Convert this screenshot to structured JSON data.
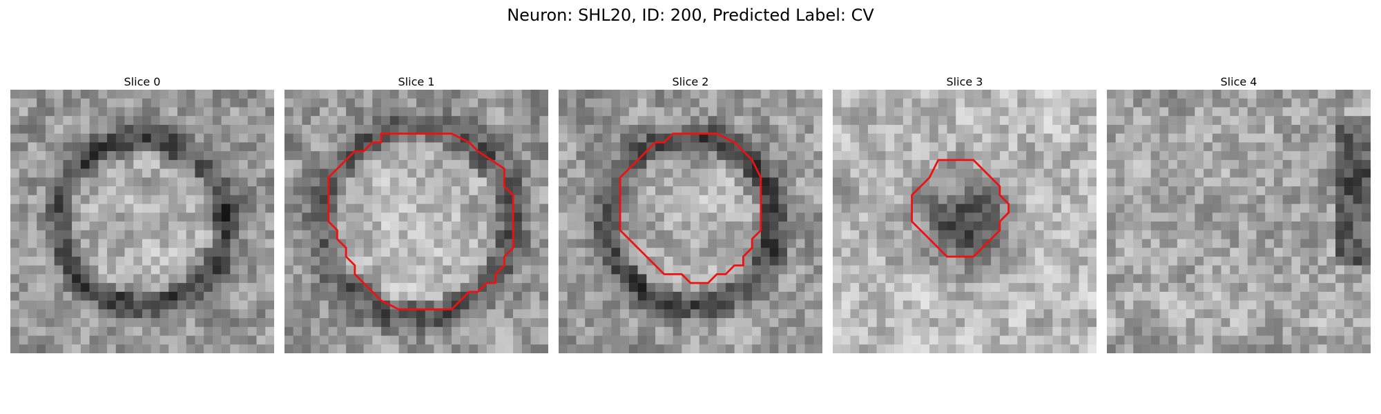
{
  "figure": {
    "title": "Neuron: SHL20, ID: 200, Predicted Label: CV"
  },
  "grid_size": 30,
  "contour_color": "#ee1111",
  "panels": [
    {
      "title": "Slice 0",
      "seed": 11,
      "style": "ring",
      "contour": []
    },
    {
      "title": "Slice 1",
      "seed": 23,
      "style": "ring-wide",
      "contour": [
        [
          11,
          5
        ],
        [
          19,
          5
        ],
        [
          21,
          6
        ],
        [
          22,
          7
        ],
        [
          25,
          9
        ],
        [
          25,
          11
        ],
        [
          26,
          12
        ],
        [
          26,
          18
        ],
        [
          25,
          19
        ],
        [
          25,
          20
        ],
        [
          24,
          21
        ],
        [
          24,
          22
        ],
        [
          23,
          22
        ],
        [
          22,
          23
        ],
        [
          21,
          23
        ],
        [
          20,
          24
        ],
        [
          19,
          25
        ],
        [
          13,
          25
        ],
        [
          11,
          24
        ],
        [
          10,
          23
        ],
        [
          9,
          22
        ],
        [
          8,
          21
        ],
        [
          8,
          20
        ],
        [
          7,
          19
        ],
        [
          7,
          18
        ],
        [
          6,
          17
        ],
        [
          6,
          16
        ],
        [
          5,
          15
        ],
        [
          5,
          10
        ],
        [
          6,
          9
        ],
        [
          7,
          8
        ],
        [
          8,
          7
        ],
        [
          9,
          7
        ],
        [
          10,
          6
        ],
        [
          11,
          6
        ]
      ]
    },
    {
      "title": "Slice 2",
      "seed": 37,
      "style": "ring",
      "contour": [
        [
          13,
          5
        ],
        [
          18,
          5
        ],
        [
          20,
          6
        ],
        [
          21,
          7
        ],
        [
          22,
          8
        ],
        [
          23,
          10
        ],
        [
          23,
          16
        ],
        [
          22,
          17
        ],
        [
          22,
          18
        ],
        [
          21,
          19
        ],
        [
          21,
          20
        ],
        [
          20,
          20
        ],
        [
          19,
          21
        ],
        [
          18,
          21
        ],
        [
          17,
          22
        ],
        [
          15,
          22
        ],
        [
          14,
          21
        ],
        [
          12,
          21
        ],
        [
          11,
          20
        ],
        [
          10,
          19
        ],
        [
          9,
          18
        ],
        [
          8,
          17
        ],
        [
          7,
          16
        ],
        [
          7,
          10
        ],
        [
          8,
          9
        ],
        [
          9,
          8
        ],
        [
          10,
          7
        ],
        [
          11,
          6
        ],
        [
          12,
          6
        ]
      ]
    },
    {
      "title": "Slice 3",
      "seed": 51,
      "style": "dark-core",
      "contour": [
        [
          12,
          8
        ],
        [
          16,
          8
        ],
        [
          18,
          10
        ],
        [
          19,
          11
        ],
        [
          19,
          12
        ],
        [
          20,
          13
        ],
        [
          20,
          14
        ],
        [
          19,
          15
        ],
        [
          19,
          16
        ],
        [
          18,
          17
        ],
        [
          17,
          18
        ],
        [
          16,
          19
        ],
        [
          13,
          19
        ],
        [
          12,
          18
        ],
        [
          11,
          17
        ],
        [
          10,
          16
        ],
        [
          9,
          15
        ],
        [
          9,
          12
        ],
        [
          10,
          11
        ],
        [
          11,
          10
        ]
      ]
    },
    {
      "title": "Slice 4",
      "seed": 67,
      "style": "diffuse",
      "contour": []
    }
  ]
}
